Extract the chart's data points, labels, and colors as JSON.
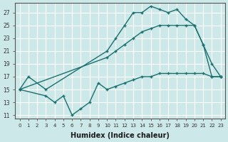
{
  "xlabel": "Humidex (Indice chaleur)",
  "xlim": [
    -0.5,
    23.5
  ],
  "ylim": [
    10.5,
    28.5
  ],
  "yticks": [
    11,
    13,
    15,
    17,
    19,
    21,
    23,
    25,
    27
  ],
  "xticks": [
    0,
    1,
    2,
    3,
    4,
    5,
    6,
    7,
    8,
    9,
    10,
    11,
    12,
    13,
    14,
    15,
    16,
    17,
    18,
    19,
    20,
    21,
    22,
    23
  ],
  "bg_color": "#cde8e8",
  "line_color": "#1a7070",
  "grid_color": "#b8d8d8",
  "line1_x": [
    0,
    1,
    3,
    10,
    11,
    12,
    13,
    14,
    15,
    16,
    17,
    18,
    19,
    20,
    21,
    22,
    23
  ],
  "line1_y": [
    15,
    17,
    15,
    21,
    23,
    25,
    27,
    27,
    28,
    27.5,
    27,
    27.5,
    26,
    25,
    22,
    19,
    17
  ],
  "line2_x": [
    0,
    10,
    11,
    12,
    13,
    14,
    15,
    16,
    17,
    18,
    19,
    20,
    21,
    22,
    23
  ],
  "line2_y": [
    15,
    20,
    21,
    22,
    23,
    24,
    24.5,
    25,
    25,
    25,
    25,
    25,
    22,
    17,
    17
  ],
  "line3_x": [
    0,
    3,
    4,
    5,
    6,
    7,
    8,
    9,
    10,
    11,
    12,
    13,
    14,
    15,
    16,
    17,
    18,
    19,
    20,
    21,
    22,
    23
  ],
  "line3_y": [
    15,
    14,
    13,
    14,
    11,
    12,
    13,
    16,
    15,
    15.5,
    16,
    16.5,
    17,
    17,
    17.5,
    17.5,
    17.5,
    17.5,
    17.5,
    17.5,
    17,
    17
  ]
}
